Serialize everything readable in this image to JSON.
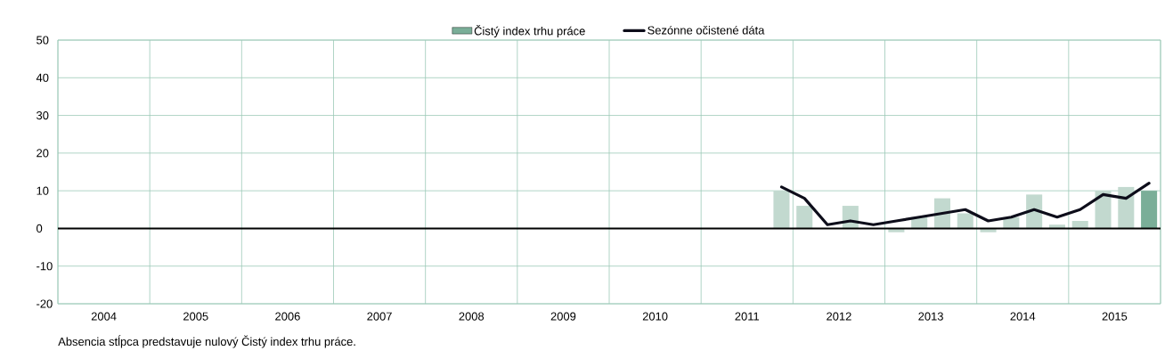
{
  "chart_data": {
    "type": "bar",
    "legend": "top",
    "grid": true,
    "xlim": [
      2004,
      2016
    ],
    "xticks": [
      {
        "value": 2004,
        "label": null
      },
      {
        "value": 2004.5,
        "label": "2004"
      },
      {
        "value": 2005,
        "label": null
      },
      {
        "value": 2005.5,
        "label": "2005"
      },
      {
        "value": 2006,
        "label": null
      },
      {
        "value": 2006.5,
        "label": "2006"
      },
      {
        "value": 2007,
        "label": null
      },
      {
        "value": 2007.5,
        "label": "2007"
      },
      {
        "value": 2008,
        "label": null
      },
      {
        "value": 2008.5,
        "label": "2008"
      },
      {
        "value": 2009,
        "label": null
      },
      {
        "value": 2009.5,
        "label": "2009"
      },
      {
        "value": 2010,
        "label": null
      },
      {
        "value": 2010.5,
        "label": "2010"
      },
      {
        "value": 2011,
        "label": null
      },
      {
        "value": 2011.5,
        "label": "2011"
      },
      {
        "value": 2012,
        "label": null
      },
      {
        "value": 2012.5,
        "label": "2012"
      },
      {
        "value": 2013,
        "label": null
      },
      {
        "value": 2013.5,
        "label": "2013"
      },
      {
        "value": 2014,
        "label": null
      },
      {
        "value": 2014.5,
        "label": "2014"
      },
      {
        "value": 2015,
        "label": null
      },
      {
        "value": 2015.5,
        "label": "2015"
      },
      {
        "value": 2016,
        "label": null
      }
    ],
    "ylim": [
      -20,
      50
    ],
    "yticks": [
      -20,
      -10,
      0,
      10,
      20,
      30,
      40,
      50
    ],
    "x": [
      2011.875,
      2012.125,
      2012.375,
      2012.625,
      2012.875,
      2013.125,
      2013.375,
      2013.625,
      2013.875,
      2014.125,
      2014.375,
      2014.625,
      2014.875,
      2015.125,
      2015.375,
      2015.625,
      2015.875
    ],
    "series": [
      {
        "name": "Čistý index trhu práce",
        "color": "#7aae98",
        "colors": [
          "#c2d9cf",
          "#c2d9cf",
          "#c2d9cf",
          "#c2d9cf",
          "#c2d9cf",
          "#c2d9cf",
          "#c2d9cf",
          "#c2d9cf",
          "#c2d9cf",
          "#c2d9cf",
          "#c2d9cf",
          "#c2d9cf",
          "#c2d9cf",
          "#c2d9cf",
          "#c2d9cf",
          "#c2d9cf",
          "#7aae98"
        ],
        "values": [
          10,
          6,
          0,
          6,
          0,
          -1,
          3,
          8,
          4,
          -1,
          3,
          9,
          1,
          2,
          10,
          11,
          10
        ]
      },
      {
        "name": "Sezónne očistené dáta",
        "type": "line",
        "color": "#0d0d1a",
        "values": [
          11,
          8,
          1,
          2,
          1,
          2,
          3,
          4,
          5,
          2,
          3,
          5,
          3,
          5,
          9,
          8,
          12
        ]
      }
    ],
    "ref_lines": [
      {
        "axis": "y",
        "value": 0,
        "color": "#000000"
      }
    ],
    "annotations": [
      "Absencia stĺpca predstavuje nulový Čistý index trhu práce."
    ]
  }
}
